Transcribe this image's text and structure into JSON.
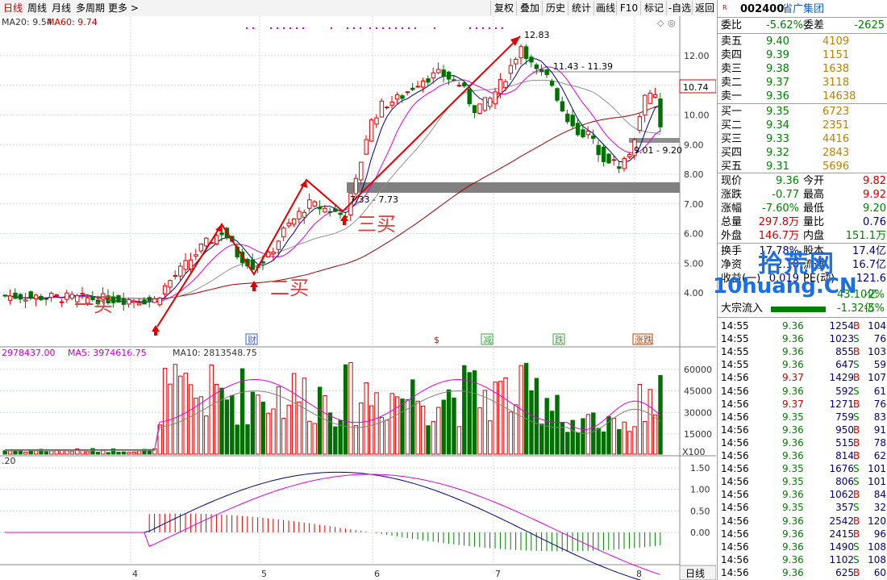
{
  "toolbar": {
    "tabs": [
      "日线",
      "周线",
      "月线",
      "多周期",
      "更多 >"
    ],
    "buttons": [
      "复权",
      "叠加",
      "历史",
      "统计",
      "画线",
      "F10",
      "标记",
      "-自选",
      "返回"
    ]
  },
  "indicators": {
    "ma_label": "MA20: 9.54",
    "ma60_label": "MA60: 9.74",
    "vol_label": "2978437.00",
    "vol_ma5_label": "MA5: 3974616.75",
    "vol_ma10_label": "MA10: 2813548.75",
    "macd_label": ".20",
    "vol_scale_label": "X100"
  },
  "price_axis": [
    "12.00",
    "11.00",
    "10.00",
    "9.00",
    "8.00",
    "7.00",
    "6.00",
    "5.00",
    "4.00"
  ],
  "volume_axis": [
    "60000",
    "45000",
    "30000",
    "15000"
  ],
  "macd_axis": [
    "1.50",
    "1.00",
    "0.50",
    "0.00"
  ],
  "x_axis": [
    "4",
    "5",
    "6",
    "7",
    "8"
  ],
  "current_price_tag": "10.74",
  "annotations": {
    "high": "12.83",
    "range1": "11.43 - 11.39",
    "range2": "7.33 - 7.73",
    "range3": "9.01 - 9.20",
    "buy1": "一买",
    "buy2": "二买",
    "buy3": "三买",
    "event_markers": [
      "财",
      "$",
      "减",
      "跌",
      "涨跌"
    ]
  },
  "stock": {
    "code": "002400",
    "name": "省广集团",
    "weibi_label": "委比",
    "weibi_value": "-5.62%",
    "weicha_label": "委差",
    "weicha_value": "-2625"
  },
  "order_book": {
    "sell": [
      {
        "label": "卖五",
        "price": "9.40",
        "vol": "4109"
      },
      {
        "label": "卖四",
        "price": "9.39",
        "vol": "1151"
      },
      {
        "label": "卖三",
        "price": "9.38",
        "vol": "1638"
      },
      {
        "label": "卖二",
        "price": "9.37",
        "vol": "3118"
      },
      {
        "label": "卖一",
        "price": "9.36",
        "vol": "14638"
      }
    ],
    "buy": [
      {
        "label": "买一",
        "price": "9.35",
        "vol": "6723"
      },
      {
        "label": "买二",
        "price": "9.34",
        "vol": "2351"
      },
      {
        "label": "买三",
        "price": "9.33",
        "vol": "4416"
      },
      {
        "label": "买四",
        "price": "9.32",
        "vol": "2843"
      },
      {
        "label": "买五",
        "price": "9.31",
        "vol": "5696"
      }
    ]
  },
  "stats": [
    {
      "l1": "现价",
      "v1": "9.36",
      "l2": "今开",
      "v2": "9.82",
      "c1": "green",
      "c2": "red"
    },
    {
      "l1": "涨跌",
      "v1": "-0.77",
      "l2": "最高",
      "v2": "9.92",
      "c1": "green",
      "c2": "red"
    },
    {
      "l1": "涨幅",
      "v1": "-7.60%",
      "l2": "最低",
      "v2": "9.20",
      "c1": "green",
      "c2": "green"
    },
    {
      "l1": "总量",
      "v1": "297.8万",
      "l2": "量比",
      "v2": "0.76",
      "c1": "red",
      "c2": "blue"
    },
    {
      "l1": "外盘",
      "v1": "146.7万",
      "l2": "内盘",
      "v2": "151.1万",
      "c1": "red",
      "c2": "green"
    }
  ],
  "stats2": [
    {
      "l1": "换手",
      "v1": "17.78%",
      "l2": "股本",
      "v2": "17.4亿"
    },
    {
      "l1": "净资",
      "v1": "2.10",
      "l2": "流通",
      "v2": "16.7亿"
    },
    {
      "l1": "收益(一)",
      "v1": "0.019",
      "l2": "PE(动)",
      "v2": "121.6"
    }
  ],
  "flows": [
    {
      "label": "大宗流入",
      "value": "-1.32亿",
      "pct": "-5%"
    }
  ],
  "flow_partial": {
    "value": "43.10亿",
    "pct": "-2%"
  },
  "watermark": {
    "line1": "拾荒网",
    "line2": "10huang.CN"
  },
  "trades": [
    {
      "t": "14:55",
      "p": "9.36",
      "v": "1254",
      "s": "B",
      "n": "104"
    },
    {
      "t": "14:55",
      "p": "9.36",
      "v": "1023",
      "s": "S",
      "n": "76"
    },
    {
      "t": "14:55",
      "p": "9.36",
      "v": "855",
      "s": "B",
      "n": "103"
    },
    {
      "t": "14:55",
      "p": "9.36",
      "v": "647",
      "s": "S",
      "n": "59"
    },
    {
      "t": "14:56",
      "p": "9.37",
      "v": "1429",
      "s": "B",
      "n": "107"
    },
    {
      "t": "14:56",
      "p": "9.36",
      "v": "592",
      "s": "S",
      "n": "61"
    },
    {
      "t": "14:56",
      "p": "9.37",
      "v": "1271",
      "s": "B",
      "n": "76"
    },
    {
      "t": "14:56",
      "p": "9.35",
      "v": "759",
      "s": "S",
      "n": "83"
    },
    {
      "t": "14:56",
      "p": "9.36",
      "v": "950",
      "s": "B",
      "n": "91"
    },
    {
      "t": "14:56",
      "p": "9.36",
      "v": "515",
      "s": "B",
      "n": "78"
    },
    {
      "t": "14:56",
      "p": "9.36",
      "v": "814",
      "s": "B",
      "n": "62"
    },
    {
      "t": "14:56",
      "p": "9.35",
      "v": "1676",
      "s": "S",
      "n": "101"
    },
    {
      "t": "14:56",
      "p": "9.35",
      "v": "806",
      "s": "S",
      "n": "101"
    },
    {
      "t": "14:56",
      "p": "9.36",
      "v": "1062",
      "s": "B",
      "n": "84"
    },
    {
      "t": "14:56",
      "p": "9.35",
      "v": "357",
      "s": "S",
      "n": "32"
    },
    {
      "t": "14:56",
      "p": "9.36",
      "v": "2542",
      "s": "B",
      "n": "120"
    },
    {
      "t": "14:56",
      "p": "9.36",
      "v": "2415",
      "s": "B",
      "n": "96"
    },
    {
      "t": "14:56",
      "p": "9.36",
      "v": "1490",
      "s": "S",
      "n": "108"
    },
    {
      "t": "14:56",
      "p": "9.36",
      "v": "1102",
      "s": "S",
      "n": "108"
    },
    {
      "t": "14:56",
      "p": "9.36",
      "v": "625",
      "s": "B",
      "n": "60"
    }
  ],
  "bottom_tab": "日线",
  "chart_data": {
    "type": "candlestick",
    "price_range": [
      3.0,
      13.2
    ],
    "ma_lines": [
      "MA5",
      "MA10",
      "MA20",
      "MA60"
    ],
    "support_bands": [
      [
        7.33,
        7.73
      ],
      [
        9.01,
        9.2
      ],
      [
        11.39,
        11.43
      ]
    ],
    "high": 12.83
  }
}
